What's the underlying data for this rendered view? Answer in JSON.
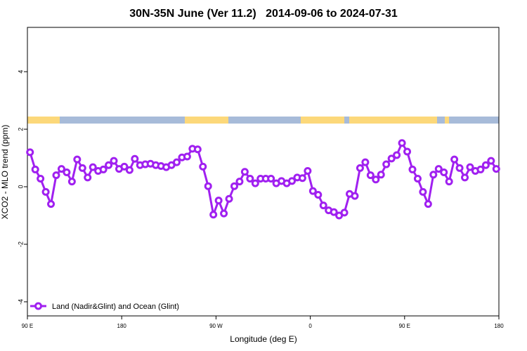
{
  "chart_data": {
    "type": "line",
    "title": "30N-35N June (Ver 11.2)   2014-09-06 to 2024-07-31",
    "xlabel": "Longitude (deg E)",
    "ylabel": "XCO2 - MLO trend (ppm)",
    "x": [
      92.5,
      97.5,
      102.5,
      107.5,
      112.5,
      117.5,
      122.5,
      127.5,
      132.5,
      137.5,
      142.5,
      147.5,
      152.5,
      157.5,
      162.5,
      167.5,
      172.5,
      177.5,
      182.5,
      187.5,
      192.5,
      197.5,
      202.5,
      207.5,
      212.5,
      217.5,
      222.5,
      227.5,
      232.5,
      237.5,
      242.5,
      247.5,
      252.5,
      257.5,
      262.5,
      267.5,
      272.5,
      277.5,
      282.5,
      287.5,
      292.5,
      297.5,
      302.5,
      307.5,
      312.5,
      317.5,
      322.5,
      327.5,
      332.5,
      337.5,
      342.5,
      347.5,
      352.5,
      357.5,
      362.5,
      367.5,
      372.5,
      377.5,
      382.5,
      387.5,
      392.5,
      397.5,
      402.5,
      407.5,
      412.5,
      417.5,
      422.5,
      427.5,
      432.5,
      437.5,
      442.5,
      447.5,
      452.5,
      457.5,
      462.5,
      467.5,
      472.5,
      477.5,
      482.5,
      487.5,
      492.5,
      497.5,
      502.5,
      507.5,
      512.5,
      517.5,
      522.5,
      527.5,
      532.5,
      537.5
    ],
    "series": [
      {
        "name": "Land (Nadir&Glint) and Ocean (Glint)",
        "color": "#a020f0",
        "values": [
          1.2,
          0.6,
          0.28,
          -0.18,
          -0.6,
          0.4,
          0.62,
          0.5,
          0.18,
          0.95,
          0.65,
          0.32,
          0.68,
          0.55,
          0.6,
          0.75,
          0.9,
          0.62,
          0.7,
          0.58,
          0.97,
          0.75,
          0.78,
          0.8,
          0.75,
          0.72,
          0.68,
          0.75,
          0.85,
          1.02,
          1.05,
          1.32,
          1.3,
          0.7,
          0.02,
          -0.97,
          -0.48,
          -0.93,
          -0.42,
          0.02,
          0.18,
          0.52,
          0.28,
          0.12,
          0.28,
          0.28,
          0.28,
          0.12,
          0.2,
          0.12,
          0.2,
          0.32,
          0.3,
          0.55,
          -0.15,
          -0.28,
          -0.65,
          -0.82,
          -0.88,
          -1.0,
          -0.9,
          -0.25,
          -0.32,
          0.65,
          0.85,
          0.4,
          0.25,
          0.42,
          0.78,
          0.98,
          1.1,
          1.52,
          1.22,
          0.6,
          0.28,
          -0.18,
          -0.6,
          0.42,
          0.62,
          0.5,
          0.18,
          0.95,
          0.65,
          0.32,
          0.68,
          0.55,
          0.6,
          0.75,
          0.9,
          0.62
        ]
      }
    ],
    "xlim": [
      90,
      540
    ],
    "xticks": [
      {
        "value": 90,
        "label": "90 E"
      },
      180,
      {
        "value": 270,
        "label": "90 W"
      },
      {
        "value": 360,
        "label": "0"
      },
      {
        "value": 450,
        "label": "90 E"
      },
      {
        "value": 540,
        "label": "180"
      }
    ],
    "ylim": [
      -4.49,
      5.54
    ],
    "yticks": [
      -4,
      -2,
      0,
      2,
      4
    ],
    "grid": false,
    "legend": "lower left"
  }
}
